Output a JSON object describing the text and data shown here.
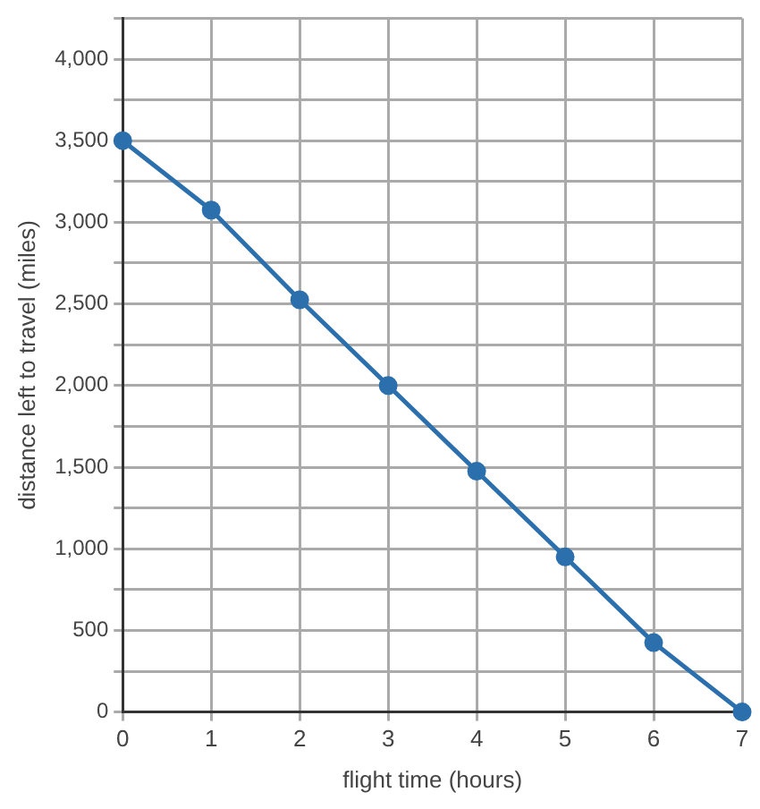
{
  "chart_data": {
    "type": "line",
    "xlabel": "flight time (hours)",
    "ylabel": "distance left to travel (miles)",
    "x": [
      0,
      1,
      2,
      3,
      4,
      5,
      6,
      7
    ],
    "series": [
      {
        "color": "#2b6fad",
        "values": [
          3500,
          3075,
          2525,
          2000,
          1475,
          950,
          425,
          0
        ]
      }
    ],
    "xlim": [
      0,
      7
    ],
    "xticks": [
      0,
      1,
      2,
      3,
      4,
      5,
      6,
      7
    ],
    "ylim": [
      0,
      4250
    ],
    "yticks": [
      {
        "value": 0,
        "label": "0"
      },
      {
        "value": 250,
        "label": null
      },
      {
        "value": 500,
        "label": "500"
      },
      {
        "value": 750,
        "label": null
      },
      {
        "value": 1000,
        "label": "1,000"
      },
      {
        "value": 1250,
        "label": null
      },
      {
        "value": 1500,
        "label": "1,500"
      },
      {
        "value": 1750,
        "label": null
      },
      {
        "value": 2000,
        "label": "2,000"
      },
      {
        "value": 2250,
        "label": null
      },
      {
        "value": 2500,
        "label": "2,500"
      },
      {
        "value": 2750,
        "label": null
      },
      {
        "value": 3000,
        "label": "3,000"
      },
      {
        "value": 3250,
        "label": null
      },
      {
        "value": 3500,
        "label": "3,500"
      },
      {
        "value": 3750,
        "label": null
      },
      {
        "value": 4000,
        "label": "4,000"
      },
      {
        "value": 4250,
        "label": null
      }
    ],
    "grid": true,
    "legend": false,
    "marker": "circle",
    "line_style": "solid"
  }
}
